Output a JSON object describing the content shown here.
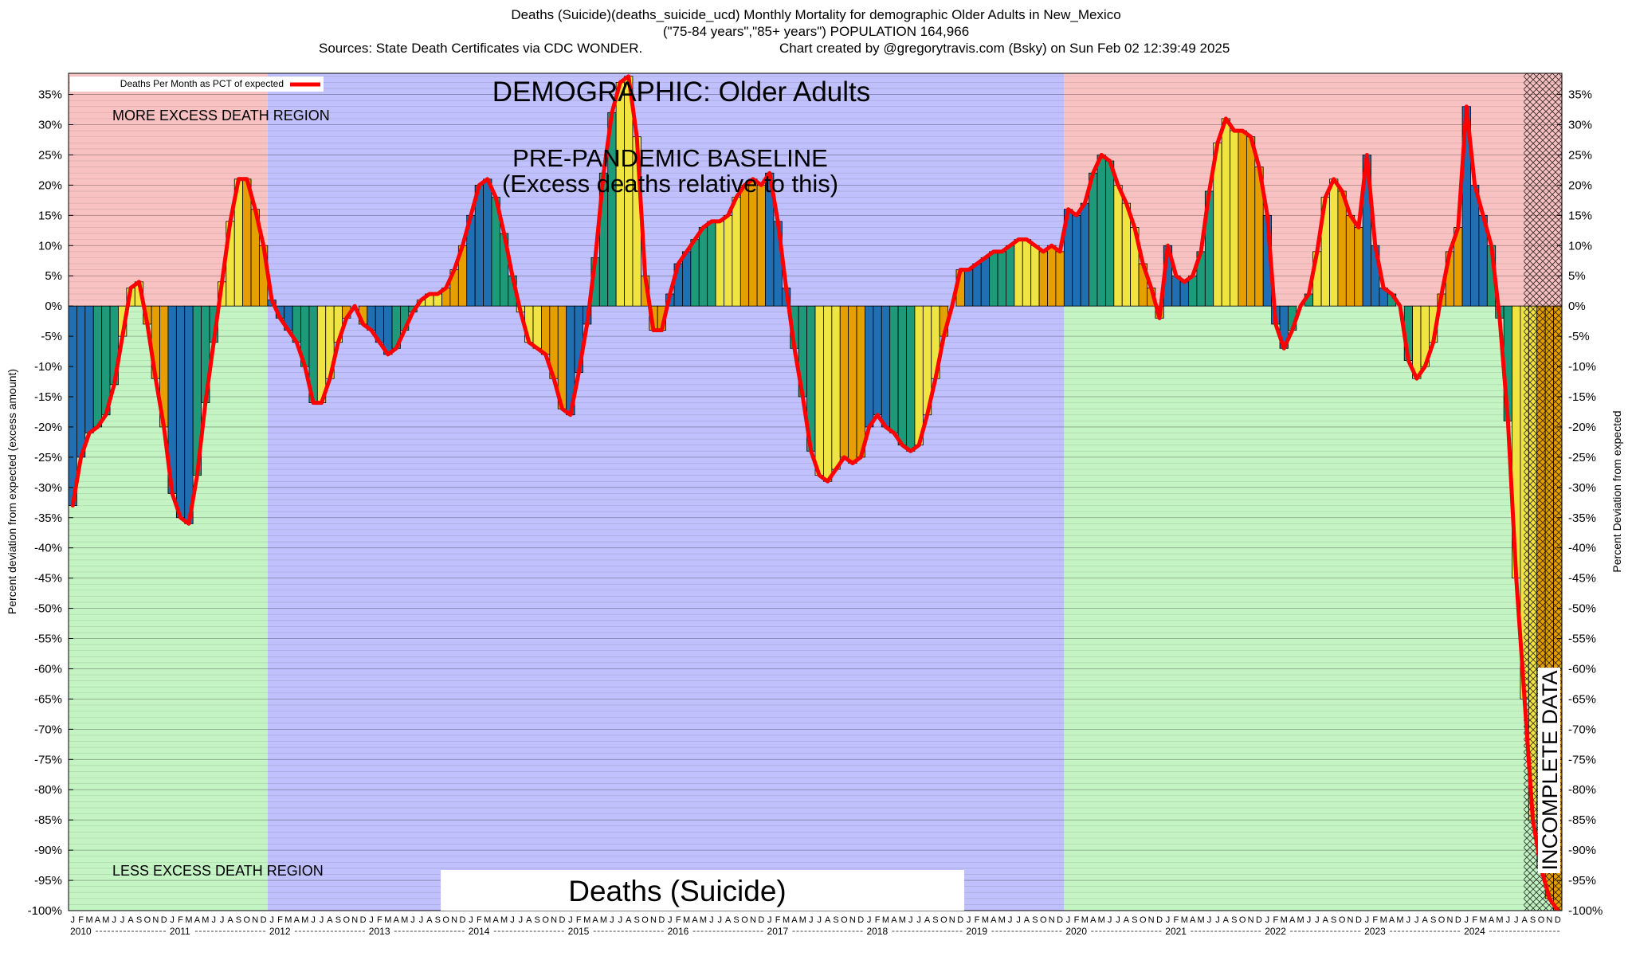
{
  "chart_data": {
    "type": "bar",
    "title": "Deaths (Suicide)(deaths_suicide_ucd) Monthly Mortality for demographic Older Adults in New_Mexico",
    "subtitle": "(\"75-84 years\",\"85+ years\") POPULATION 164,966",
    "source": "Sources: State Death Certificates via CDC WONDER.",
    "credit": "Chart created by @gregorytravis.com (Bsky) on Sun Feb 02 12:39:49 2025",
    "y_label": "Percent deviation from expected (excess amount)",
    "y2_label": "Percent Deviation from expected",
    "annotations": {
      "demographic": "DEMOGRAPHIC: Older Adults",
      "baseline": "PRE-PANDEMIC BASELINE",
      "baseline_note": "(Excess deaths relative to this)",
      "more": "MORE EXCESS DEATH REGION",
      "less": "LESS EXCESS DEATH REGION",
      "cause": "Deaths (Suicide)",
      "incomplete": "INCOMPLETE DATA"
    },
    "years": [
      "2010",
      "2011",
      "2012",
      "2013",
      "2014",
      "2015",
      "2016",
      "2017",
      "2018",
      "2019",
      "2020",
      "2021",
      "2022",
      "2023",
      "2024"
    ],
    "categories": [
      "J",
      "F",
      "M",
      "A",
      "M",
      "J",
      "J",
      "A",
      "S",
      "O",
      "N",
      "D",
      "J",
      "F",
      "M",
      "A",
      "M",
      "J",
      "J",
      "A",
      "S",
      "O",
      "N",
      "D",
      "J",
      "F",
      "M",
      "A",
      "M",
      "J",
      "J",
      "A",
      "S",
      "O",
      "N",
      "D",
      "J",
      "F",
      "M",
      "A",
      "M",
      "J",
      "J",
      "A",
      "S",
      "O",
      "N",
      "D",
      "J",
      "F",
      "M",
      "A",
      "M",
      "J",
      "J",
      "A",
      "S",
      "O",
      "N",
      "D",
      "J",
      "F",
      "M",
      "A",
      "M",
      "J",
      "J",
      "A",
      "S",
      "O",
      "N",
      "D",
      "J",
      "F",
      "M",
      "A",
      "M",
      "J",
      "J",
      "A",
      "S",
      "O",
      "N",
      "D",
      "J",
      "F",
      "M",
      "A",
      "M",
      "J",
      "J",
      "A",
      "S",
      "O",
      "N",
      "D",
      "J",
      "F",
      "M",
      "A",
      "M",
      "J",
      "J",
      "A",
      "S",
      "O",
      "N",
      "D",
      "J",
      "F",
      "M",
      "A",
      "M",
      "J",
      "J",
      "A",
      "S",
      "O",
      "N",
      "D",
      "J",
      "F",
      "M",
      "A",
      "M",
      "J",
      "J",
      "A",
      "S",
      "O",
      "N",
      "D",
      "J",
      "F",
      "M",
      "A",
      "M",
      "J",
      "J",
      "A",
      "S",
      "O",
      "N",
      "D",
      "J",
      "F",
      "M",
      "A",
      "M",
      "J",
      "J",
      "A",
      "S",
      "O",
      "N",
      "D",
      "J",
      "F",
      "M",
      "A",
      "M",
      "J",
      "J",
      "A",
      "S",
      "O",
      "N",
      "D",
      "J",
      "F",
      "M",
      "A",
      "M",
      "J",
      "J",
      "A",
      "S",
      "O",
      "N",
      "D"
    ],
    "series": [
      {
        "name": "Deaths Per Month as PCT of expected",
        "color": "#ff0000",
        "bar_colors": [
          "#1f6fb2",
          "#1e9a7a",
          "#f0e442",
          "#e69f00"
        ],
        "values": [
          -33,
          -25,
          -21,
          -20,
          -18,
          -13,
          -5,
          3,
          4,
          -3,
          -12,
          -20,
          -31,
          -35,
          -36,
          -28,
          -16,
          -6,
          4,
          14,
          21,
          21,
          16,
          10,
          1,
          -2,
          -4,
          -6,
          -10,
          -16,
          -16,
          -12,
          -6,
          -2,
          0,
          -3,
          -4,
          -6,
          -8,
          -7,
          -4,
          -1,
          1,
          2,
          2,
          3,
          6,
          10,
          15,
          20,
          21,
          18,
          12,
          5,
          -1,
          -6,
          -7,
          -8,
          -12,
          -17,
          -18,
          -11,
          -3,
          8,
          22,
          32,
          37,
          38,
          28,
          5,
          -4,
          -4,
          2,
          7,
          9,
          11,
          13,
          14,
          14,
          15,
          18,
          20,
          21,
          20,
          22,
          14,
          3,
          -7,
          -15,
          -24,
          -28,
          -29,
          -27,
          -25,
          -26,
          -25,
          -20,
          -18,
          -20,
          -21,
          -23,
          -24,
          -23,
          -18,
          -12,
          -5,
          0,
          6,
          6,
          7,
          8,
          9,
          9,
          10,
          11,
          11,
          10,
          9,
          10,
          9,
          16,
          15,
          17,
          22,
          25,
          24,
          20,
          17,
          13,
          7,
          3,
          -2,
          10,
          5,
          4,
          5,
          9,
          19,
          27,
          31,
          29,
          29,
          28,
          23,
          15,
          -3,
          -7,
          -4,
          0,
          2,
          9,
          18,
          21,
          19,
          15,
          13,
          25,
          10,
          3,
          2,
          0,
          -9,
          -12,
          -10,
          -6,
          2,
          9,
          13,
          33,
          20,
          15,
          10,
          -2,
          -19,
          -45,
          -65,
          -85,
          -93,
          -98,
          -100
        ]
      }
    ],
    "ylim": [
      -100,
      38.5
    ],
    "yticks": [
      {
        "value": -100,
        "label": "-100%"
      },
      {
        "value": -95,
        "label": "-95%"
      },
      {
        "value": -90,
        "label": "-90%"
      },
      {
        "value": -85,
        "label": "-85%"
      },
      {
        "value": -80,
        "label": "-80%"
      },
      {
        "value": -75,
        "label": "-75%"
      },
      {
        "value": -70,
        "label": "-70%"
      },
      {
        "value": -65,
        "label": "-65%"
      },
      {
        "value": -60,
        "label": "-60%"
      },
      {
        "value": -55,
        "label": "-55%"
      },
      {
        "value": -50,
        "label": "-50%"
      },
      {
        "value": -45,
        "label": "-45%"
      },
      {
        "value": -40,
        "label": "-40%"
      },
      {
        "value": -35,
        "label": "-35%"
      },
      {
        "value": -30,
        "label": "-30%"
      },
      {
        "value": -25,
        "label": "-25%"
      },
      {
        "value": -20,
        "label": "-20%"
      },
      {
        "value": -15,
        "label": "-15%"
      },
      {
        "value": -10,
        "label": "-10%"
      },
      {
        "value": -5,
        "label": "-5%"
      },
      {
        "value": 0,
        "label": "0%"
      },
      {
        "value": 5,
        "label": "5%"
      },
      {
        "value": 10,
        "label": "10%"
      },
      {
        "value": 15,
        "label": "15%"
      },
      {
        "value": 20,
        "label": "20%"
      },
      {
        "value": 25,
        "label": "25%"
      },
      {
        "value": 30,
        "label": "30%"
      },
      {
        "value": 35,
        "label": "35%"
      }
    ],
    "grid": true
  }
}
